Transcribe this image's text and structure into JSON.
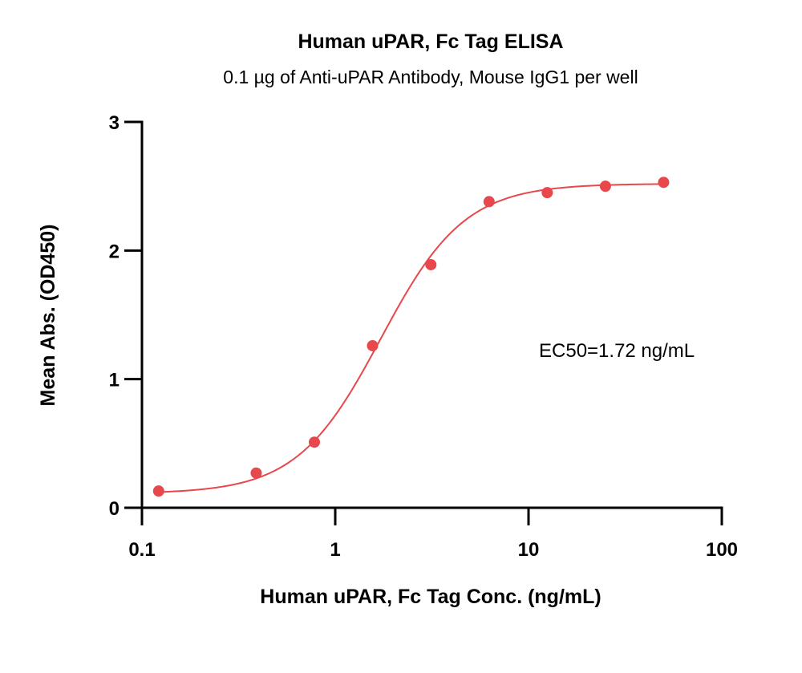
{
  "chart_data": {
    "type": "scatter",
    "title": "Human uPAR, Fc Tag ELISA",
    "subtitle": "0.1 µg of Anti-uPAR Antibody, Mouse IgG1 per well",
    "xlabel": "Human uPAR, Fc Tag Conc. (ng/mL)",
    "ylabel": "Mean Abs. (OD450)",
    "xscale": "log",
    "xlim": [
      0.1,
      100
    ],
    "ylim": [
      0,
      3
    ],
    "x_ticks": [
      0.1,
      1,
      10,
      100
    ],
    "x_tick_labels": [
      "0.1",
      "1",
      "10",
      "100"
    ],
    "y_ticks": [
      0,
      1,
      2,
      3
    ],
    "y_tick_labels": [
      "0",
      "1",
      "2",
      "3"
    ],
    "annotation": "EC50=1.72 ng/mL",
    "color": "#e8474b",
    "series": [
      {
        "x": [
          0.122,
          0.39,
          0.78,
          1.56,
          3.125,
          6.25,
          12.5,
          25,
          50
        ],
        "y": [
          0.13,
          0.27,
          0.51,
          1.26,
          1.89,
          2.38,
          2.45,
          2.5,
          2.53
        ]
      }
    ],
    "fit_curve": {
      "model": "4PL",
      "bottom": 0.11,
      "top": 2.52,
      "ec50": 1.72,
      "hill": 2.0
    }
  }
}
